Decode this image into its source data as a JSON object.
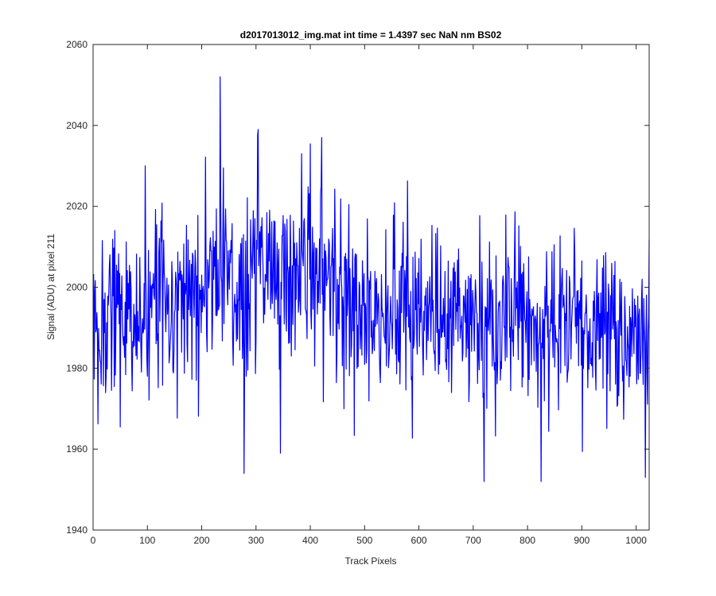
{
  "chart_data": {
    "type": "line",
    "title": "d2017013012_img.mat int time = 1.4397 sec  NaN nm BS02",
    "xlabel": "Track Pixels",
    "ylabel": "Signal (ADU) at pixel 211",
    "xlim": [
      0,
      1024
    ],
    "ylim": [
      1940,
      2060
    ],
    "xticks": [
      0,
      100,
      200,
      300,
      400,
      500,
      600,
      700,
      800,
      900,
      1000
    ],
    "yticks": [
      1940,
      1960,
      1980,
      2000,
      2020,
      2040,
      2060
    ],
    "grid": false,
    "series_color": "#0000ff",
    "series": [
      {
        "x": [
          1,
          20,
          40,
          60,
          80,
          96,
          120,
          140,
          160,
          180,
          200,
          220,
          235,
          250,
          278,
          290,
          300,
          320,
          345,
          360,
          384,
          400,
          420,
          440,
          460,
          480,
          500,
          520,
          540,
          560,
          580,
          600,
          620,
          640,
          660,
          680,
          700,
          720,
          740,
          760,
          780,
          800,
          820,
          840,
          860,
          880,
          900,
          920,
          940,
          960,
          980,
          1000,
          1017,
          1024
        ],
        "y": [
          1985,
          1991,
          1993,
          1996,
          1992,
          1994,
          1995,
          1996,
          1997,
          1998,
          1999,
          2001,
          2003,
          2002,
          1993,
          2004,
          2006,
          2003,
          2004,
          2005,
          2006,
          2004,
          2004,
          2002,
          1998,
          1996,
          1993,
          1993,
          1993,
          1994,
          1994,
          1994,
          1993,
          1993,
          1992,
          1992,
          1992,
          1990,
          1990,
          1992,
          1993,
          1993,
          1989,
          1990,
          1992,
          1991,
          1991,
          1991,
          1991,
          1991,
          1989,
          1990,
          1984,
          1985
        ],
        "extremes": [
          {
            "x": 234,
            "y": 2052
          },
          {
            "x": 304,
            "y": 2039
          },
          {
            "x": 421,
            "y": 2037
          },
          {
            "x": 384,
            "y": 2033
          },
          {
            "x": 96,
            "y": 2030
          },
          {
            "x": 278,
            "y": 1954
          },
          {
            "x": 720,
            "y": 1952
          },
          {
            "x": 825,
            "y": 1952
          },
          {
            "x": 345,
            "y": 1959
          },
          {
            "x": 1017,
            "y": 1953
          }
        ]
      }
    ]
  }
}
